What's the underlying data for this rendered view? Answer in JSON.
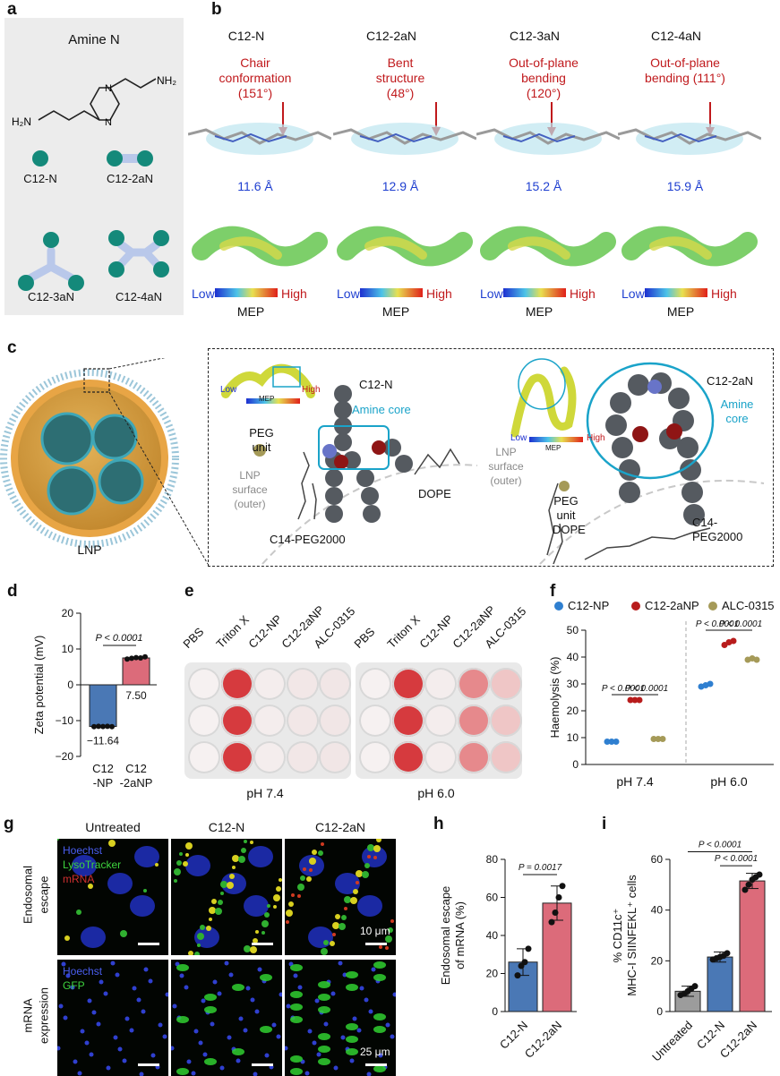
{
  "panels": {
    "a": {
      "label": "a",
      "title": "Amine N",
      "chem_labels": [
        "H₂N",
        "NH₂",
        "N",
        "N"
      ],
      "structures": [
        "C12-N",
        "C12-2aN",
        "C12-3aN",
        "C12-4aN"
      ]
    },
    "b": {
      "label": "b",
      "columns": [
        {
          "name": "C12-N",
          "annotation": [
            "Chair",
            "conformation",
            "(151°)"
          ],
          "distance": "11.6 Å"
        },
        {
          "name": "C12-2aN",
          "annotation": [
            "Bent",
            "structure",
            "(48°)"
          ],
          "distance": "12.9 Å"
        },
        {
          "name": "C12-3aN",
          "annotation": [
            "Out-of-plane",
            "bending",
            "(120°)"
          ],
          "distance": "15.2 Å"
        },
        {
          "name": "C12-4aN",
          "annotation": [
            "Out-of-plane",
            "bending (111°)"
          ],
          "distance": "15.9 Å"
        }
      ],
      "mep": {
        "low": "Low",
        "high": "High",
        "title": "MEP"
      }
    },
    "c": {
      "label": "c",
      "lnp_label": "LNP",
      "left": {
        "molecule": "C12-N",
        "core": "Amine core",
        "peg": [
          "PEG",
          "unit"
        ],
        "surface": [
          "LNP",
          "surface",
          "(outer)"
        ],
        "lipid": "DOPE",
        "peg_lipid": "C14-PEG2000",
        "mep_low": "Low",
        "mep_high": "High",
        "mep_title": "MEP"
      },
      "right": {
        "molecule": "C12-2aN",
        "core": [
          "Amine",
          "core"
        ],
        "peg": [
          "PEG",
          "unit"
        ],
        "surface": [
          "LNP",
          "surface",
          "(outer)"
        ],
        "lipid": "DOPE",
        "peg_lipid": [
          "C14-",
          "PEG2000"
        ],
        "mep_low": "Low",
        "mep_high": "High",
        "mep_title": "MEP"
      }
    },
    "d": {
      "label": "d"
    },
    "e": {
      "label": "e",
      "plates": [
        {
          "columns": [
            "PBS",
            "Triton X",
            "C12-NP",
            "C12-2aNP",
            "ALC-0315"
          ],
          "ph": "pH 7.4"
        },
        {
          "columns": [
            "PBS",
            "Triton X",
            "C12-NP",
            "C12-2aNP",
            "ALC-0315"
          ],
          "ph": "pH 6.0"
        }
      ]
    },
    "f": {
      "label": "f"
    },
    "g": {
      "label": "g",
      "col_headers": [
        "Untreated",
        "C12-N",
        "C12-2aN"
      ],
      "rows": [
        {
          "side_label": [
            "Endosomal",
            "escape"
          ],
          "channels": [
            "Hoechst",
            "LysoTracker",
            "mRNA"
          ],
          "scale": "10 μm"
        },
        {
          "side_label": [
            "mRNA",
            "expression"
          ],
          "channels": [
            "Hoechst",
            "GFP"
          ],
          "scale": "25 μm"
        }
      ]
    },
    "h": {
      "label": "h"
    },
    "i": {
      "label": "i"
    }
  },
  "chart_data": [
    {
      "panel": "d",
      "type": "bar",
      "categories": [
        "C12\n-NP",
        "C12\n-2aNP"
      ],
      "values": [
        -11.64,
        7.5
      ],
      "value_labels": [
        "−11.64",
        "7.50"
      ],
      "ylabel": "Zeta potential (mV)",
      "ylim": [
        -20,
        20
      ],
      "yticks": [
        -20,
        -10,
        0,
        10,
        20
      ],
      "colors": [
        "#4a78b5",
        "#dc6b7a"
      ],
      "points": [
        [
          -11.7,
          -11.6,
          -11.65,
          -11.6,
          -11.7
        ],
        [
          7.2,
          7.4,
          7.6,
          7.5,
          7.8
        ]
      ],
      "annotations": [
        "P < 0.0001"
      ]
    },
    {
      "panel": "f",
      "type": "scatter",
      "categories": [
        "pH 7.4",
        "pH 6.0"
      ],
      "series": [
        {
          "name": "C12-NP",
          "color": "#2f7fd0",
          "values": [
            [
              8.5,
              8.5,
              8.5
            ],
            [
              29,
              29.5,
              30
            ]
          ]
        },
        {
          "name": "C12-2aNP",
          "color": "#b81c1c",
          "values": [
            [
              24,
              24,
              24
            ],
            [
              44.5,
              45.5,
              46
            ]
          ]
        },
        {
          "name": "ALC-0315",
          "color": "#a59a58",
          "values": [
            [
              9.5,
              9.5,
              9.5
            ],
            [
              39,
              39.5,
              39
            ]
          ]
        }
      ],
      "ylabel": "Haemolysis (%)",
      "ylim": [
        0,
        50
      ],
      "yticks": [
        0,
        10,
        20,
        30,
        40,
        50
      ],
      "annotations": [
        "P < 0.0001",
        "P < 0.0001",
        "P < 0.0001",
        "P < 0.0001"
      ]
    },
    {
      "panel": "h",
      "type": "bar",
      "categories": [
        "C12-N",
        "C12-2aN"
      ],
      "values": [
        26,
        57
      ],
      "errors": [
        7,
        9
      ],
      "points": [
        [
          19,
          24,
          26,
          33
        ],
        [
          47,
          52,
          60,
          66
        ]
      ],
      "ylabel": [
        "Endosomal escape",
        "of mRNA (%)"
      ],
      "ylim": [
        0,
        80
      ],
      "yticks": [
        0,
        20,
        40,
        60,
        80
      ],
      "colors": [
        "#4a78b5",
        "#dc6b7a"
      ],
      "annotations": [
        "P = 0.0017"
      ]
    },
    {
      "panel": "i",
      "type": "bar",
      "categories": [
        "Untreated",
        "C12-N",
        "C12-2aN"
      ],
      "values": [
        8,
        21.5,
        51.5
      ],
      "errors": [
        2,
        2,
        3
      ],
      "points": [
        [
          6.5,
          7,
          8,
          9,
          10
        ],
        [
          20.5,
          21,
          21.5,
          22,
          23
        ],
        [
          48,
          50,
          52,
          53,
          54
        ]
      ],
      "ylabel": [
        "% CD11c⁺",
        "MHC-I SIINFEKL⁺ cells"
      ],
      "ylim": [
        0,
        60
      ],
      "yticks": [
        0,
        20,
        40,
        60
      ],
      "colors": [
        "#9c9c9c",
        "#4a78b5",
        "#dc6b7a"
      ],
      "annotations": [
        "P < 0.0001",
        "P < 0.0001"
      ]
    }
  ]
}
